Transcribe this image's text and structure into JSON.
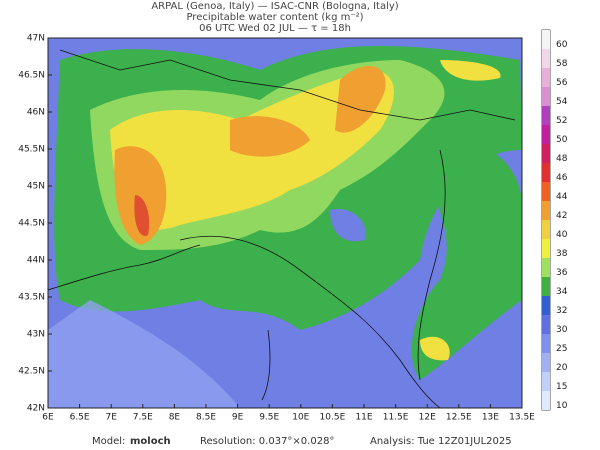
{
  "header": {
    "line1": "ARPAL (Genoa, Italy)  —  ISAC-CNR (Bologna, Italy)",
    "line2": "Precipitable water content (kg m⁻²)",
    "line3": "06 UTC Wed 02 JUL  —  τ = 18h"
  },
  "latitude_labels": [
    "47N",
    "46.5N",
    "46N",
    "45.5N",
    "45N",
    "44.5N",
    "44N",
    "43.5N",
    "43N",
    "42.5N",
    "42N"
  ],
  "longitude_labels": [
    "6E",
    "6.5E",
    "7E",
    "7.5E",
    "8E",
    "8.5E",
    "9E",
    "9.5E",
    "10E",
    "10.5E",
    "11E",
    "11.5E",
    "12E",
    "12.5E",
    "13E",
    "13.5E"
  ],
  "colorbar": {
    "labels": [
      60,
      58,
      56,
      54,
      52,
      50,
      48,
      46,
      44,
      42,
      40,
      38,
      36,
      34,
      32,
      30,
      25,
      20,
      15,
      10
    ],
    "colors": [
      "#f4f4f4",
      "#f0d8e8",
      "#e8b0d8",
      "#d890d0",
      "#b040c0",
      "#c020a0",
      "#d02060",
      "#e03030",
      "#f06020",
      "#f0a030",
      "#f0d040",
      "#f0f040",
      "#a0e060",
      "#40b040",
      "#3060d0",
      "#6070e0",
      "#8090f0",
      "#a0b0f0",
      "#c0d0f8",
      "#e0e8fc"
    ]
  },
  "footer": {
    "model_label": "Model:",
    "model": "moloch",
    "resolution": "Resolution: 0.037°×0.028°",
    "analysis": "Analysis: Tue 12Z01JUL2025"
  }
}
